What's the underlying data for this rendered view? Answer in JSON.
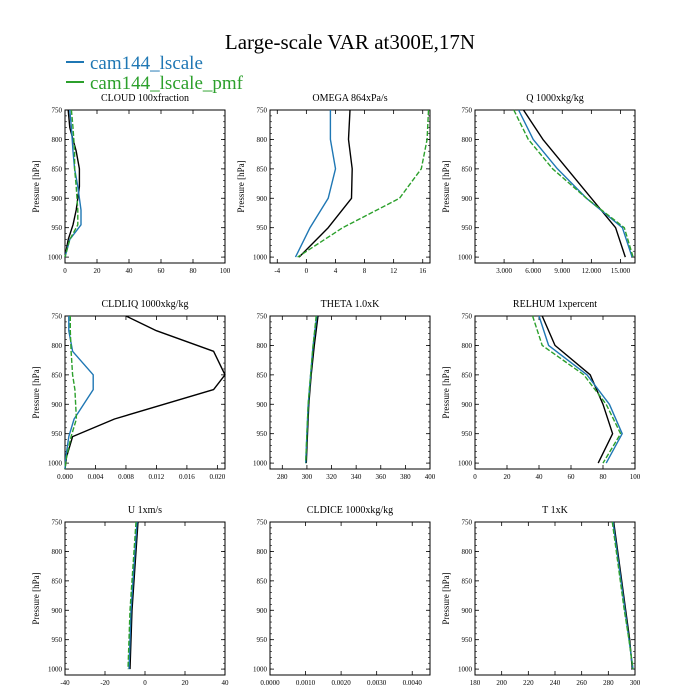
{
  "figure": {
    "title": "Large-scale VAR at300E,17N",
    "legend": [
      {
        "name": "cam144_lscale",
        "color": "#1f77b4"
      },
      {
        "name": "cam144_lscale_pmf",
        "color": "#2ca02c"
      }
    ]
  },
  "chart_data": [
    {
      "type": "line",
      "title": "CLOUD 100xfraction",
      "ylabel": "Pressure [hPa]",
      "xlim": [
        0,
        100
      ],
      "xticks": [
        0,
        20,
        40,
        60,
        80,
        100
      ],
      "xtick_labels": [
        "0",
        "20",
        "40",
        "60",
        "80",
        "100"
      ],
      "ylim": [
        750,
        1010
      ],
      "yticks": [
        750,
        800,
        850,
        900,
        950,
        1000
      ],
      "y": [
        750,
        780,
        820,
        850,
        880,
        920,
        945,
        970,
        1000
      ],
      "series": [
        {
          "color": "#000000",
          "dashed": false,
          "values": [
            2,
            3,
            7,
            9,
            9,
            7,
            5,
            2,
            0
          ]
        },
        {
          "color": "#1f77b4",
          "dashed": false,
          "values": [
            3,
            4,
            5,
            6,
            8,
            10,
            10,
            3,
            0
          ]
        },
        {
          "color": "#2ca02c",
          "dashed": true,
          "values": [
            4,
            5,
            6,
            6,
            7,
            8,
            8,
            3,
            0
          ]
        }
      ]
    },
    {
      "type": "line",
      "title": "OMEGA 864xPa/s",
      "ylabel": "Pressure [hPa]",
      "xlim": [
        -5,
        17
      ],
      "xticks": [
        -4,
        0,
        4,
        8,
        12,
        16
      ],
      "xtick_labels": [
        "-4",
        "0",
        "4",
        "8",
        "12",
        "16"
      ],
      "ylim": [
        750,
        1010
      ],
      "yticks": [
        750,
        800,
        850,
        900,
        950,
        1000
      ],
      "y": [
        750,
        800,
        850,
        900,
        950,
        1000
      ],
      "series": [
        {
          "color": "#000000",
          "dashed": false,
          "values": [
            6,
            5.8,
            6.3,
            6.2,
            3,
            -1
          ]
        },
        {
          "color": "#1f77b4",
          "dashed": false,
          "values": [
            3.3,
            3.3,
            4,
            3,
            0.5,
            -1.5
          ]
        },
        {
          "color": "#2ca02c",
          "dashed": true,
          "values": [
            16.8,
            16.6,
            15.8,
            12.8,
            5,
            -1.2
          ]
        }
      ]
    },
    {
      "type": "line",
      "title": "Q 1000xkg/kg",
      "ylabel": "Pressure [hPa]",
      "xlim": [
        0,
        16.5
      ],
      "xticks": [
        3,
        6,
        9,
        12,
        15
      ],
      "xtick_labels": [
        "3.000",
        "6.000",
        "9.000",
        "12.000",
        "15.000"
      ],
      "ylim": [
        750,
        1010
      ],
      "yticks": [
        750,
        800,
        850,
        900,
        950,
        1000
      ],
      "y": [
        750,
        800,
        850,
        900,
        950,
        1000
      ],
      "series": [
        {
          "color": "#000000",
          "dashed": false,
          "values": [
            5,
            7,
            9.5,
            12,
            14.5,
            15.5
          ]
        },
        {
          "color": "#1f77b4",
          "dashed": false,
          "values": [
            4.5,
            6,
            8.5,
            11.5,
            15.2,
            16.2
          ]
        },
        {
          "color": "#2ca02c",
          "dashed": true,
          "values": [
            4,
            5.5,
            8,
            11.5,
            15.4,
            16.3
          ]
        }
      ]
    },
    {
      "type": "line",
      "title": "CLDLIQ 1000xkg/kg",
      "ylabel": "Pressure [hPa]",
      "xlim": [
        0,
        0.021
      ],
      "xticks": [
        0,
        0.004,
        0.008,
        0.012,
        0.016,
        0.02
      ],
      "xtick_labels": [
        "0.000",
        "0.004",
        "0.008",
        "0.012",
        "0.016",
        "0.020"
      ],
      "ylim": [
        750,
        1010
      ],
      "yticks": [
        750,
        800,
        850,
        900,
        950,
        1000
      ],
      "y": [
        750,
        775,
        810,
        850,
        875,
        925,
        955,
        990,
        1010
      ],
      "series": [
        {
          "color": "#000000",
          "dashed": false,
          "values": [
            0.008,
            0.012,
            0.0195,
            0.021,
            0.0195,
            0.0065,
            0.001,
            0.0002,
            0
          ]
        },
        {
          "color": "#1f77b4",
          "dashed": false,
          "values": [
            0.0005,
            0.0005,
            0.001,
            0.0037,
            0.0037,
            0.0012,
            0.0005,
            0.0001,
            0
          ]
        },
        {
          "color": "#2ca02c",
          "dashed": true,
          "values": [
            0.0007,
            0.0007,
            0.0008,
            0.001,
            0.0013,
            0.0015,
            0.0008,
            0.0002,
            0
          ]
        }
      ]
    },
    {
      "type": "line",
      "title": "THETA 1.0xK",
      "ylabel": "",
      "xlim": [
        270,
        400
      ],
      "xticks": [
        280,
        300,
        320,
        340,
        360,
        380,
        400
      ],
      "xtick_labels": [
        "280",
        "300",
        "320",
        "340",
        "360",
        "380",
        "400"
      ],
      "ylim": [
        750,
        1010
      ],
      "yticks": [
        750,
        800,
        850,
        900,
        950,
        1000
      ],
      "y": [
        750,
        800,
        850,
        900,
        950,
        1000
      ],
      "series": [
        {
          "color": "#000000",
          "dashed": false,
          "values": [
            309,
            306,
            303.5,
            301.5,
            300.5,
            299.5
          ]
        },
        {
          "color": "#1f77b4",
          "dashed": false,
          "values": [
            308,
            305,
            303,
            301,
            300,
            299
          ]
        },
        {
          "color": "#2ca02c",
          "dashed": true,
          "values": [
            307.5,
            305,
            303,
            301,
            300,
            299
          ]
        }
      ]
    },
    {
      "type": "line",
      "title": "RELHUM 1xpercent",
      "ylabel": "Pressure [hPa]",
      "xlim": [
        0,
        100
      ],
      "xticks": [
        0,
        20,
        40,
        60,
        80,
        100
      ],
      "xtick_labels": [
        "0",
        "20",
        "40",
        "60",
        "80",
        "100"
      ],
      "ylim": [
        750,
        1010
      ],
      "yticks": [
        750,
        800,
        850,
        900,
        950,
        1000
      ],
      "y": [
        750,
        800,
        850,
        900,
        950,
        1000
      ],
      "series": [
        {
          "color": "#000000",
          "dashed": false,
          "values": [
            42,
            50,
            72,
            80,
            86,
            77
          ]
        },
        {
          "color": "#1f77b4",
          "dashed": false,
          "values": [
            40,
            46,
            70,
            84,
            92,
            82
          ]
        },
        {
          "color": "#2ca02c",
          "dashed": true,
          "values": [
            36,
            42,
            68,
            82,
            91,
            80
          ]
        }
      ]
    },
    {
      "type": "line",
      "title": "U 1xm/s",
      "ylabel": "Pressure [hPa]",
      "xlim": [
        -40,
        40
      ],
      "xticks": [
        -40,
        -20,
        0,
        20,
        40
      ],
      "xtick_labels": [
        "-40",
        "-20",
        "0",
        "20",
        "40"
      ],
      "ylim": [
        750,
        1010
      ],
      "yticks": [
        750,
        800,
        850,
        900,
        950,
        1000
      ],
      "y": [
        750,
        800,
        850,
        900,
        950,
        1000
      ],
      "series": [
        {
          "color": "#000000",
          "dashed": false,
          "values": [
            -3.5,
            -4.5,
            -5.5,
            -6.5,
            -7,
            -7.5
          ]
        },
        {
          "color": "#1f77b4",
          "dashed": false,
          "values": [
            -4,
            -5,
            -6,
            -7,
            -7.5,
            -8
          ]
        },
        {
          "color": "#2ca02c",
          "dashed": true,
          "values": [
            -4.5,
            -5.5,
            -6.5,
            -7.5,
            -8,
            -8.5
          ]
        }
      ]
    },
    {
      "type": "line",
      "title": "CLDICE 1000xkg/kg",
      "ylabel": "",
      "xlim": [
        0,
        0.0045
      ],
      "xticks": [
        0,
        0.001,
        0.002,
        0.003,
        0.004
      ],
      "xtick_labels": [
        "0.0000",
        "0.0010",
        "0.0020",
        "0.0030",
        "0.0040"
      ],
      "ylim": [
        750,
        1010
      ],
      "yticks": [
        750,
        800,
        850,
        900,
        950,
        1000
      ],
      "y": [],
      "series": []
    },
    {
      "type": "line",
      "title": "T 1xK",
      "ylabel": "Pressure [hPa]",
      "xlim": [
        180,
        300
      ],
      "xticks": [
        180,
        200,
        220,
        240,
        260,
        280,
        300
      ],
      "xtick_labels": [
        "180",
        "200",
        "220",
        "240",
        "260",
        "280",
        "300"
      ],
      "ylim": [
        750,
        1010
      ],
      "yticks": [
        750,
        800,
        850,
        900,
        950,
        1000
      ],
      "y": [
        750,
        800,
        850,
        900,
        950,
        1000
      ],
      "series": [
        {
          "color": "#000000",
          "dashed": false,
          "values": [
            284,
            287,
            290,
            293,
            296,
            298
          ]
        },
        {
          "color": "#1f77b4",
          "dashed": false,
          "values": [
            283.5,
            286.5,
            289.5,
            292.5,
            295.5,
            298.5
          ]
        },
        {
          "color": "#2ca02c",
          "dashed": true,
          "values": [
            283,
            286,
            289,
            292,
            295.5,
            298.5
          ]
        }
      ]
    }
  ]
}
